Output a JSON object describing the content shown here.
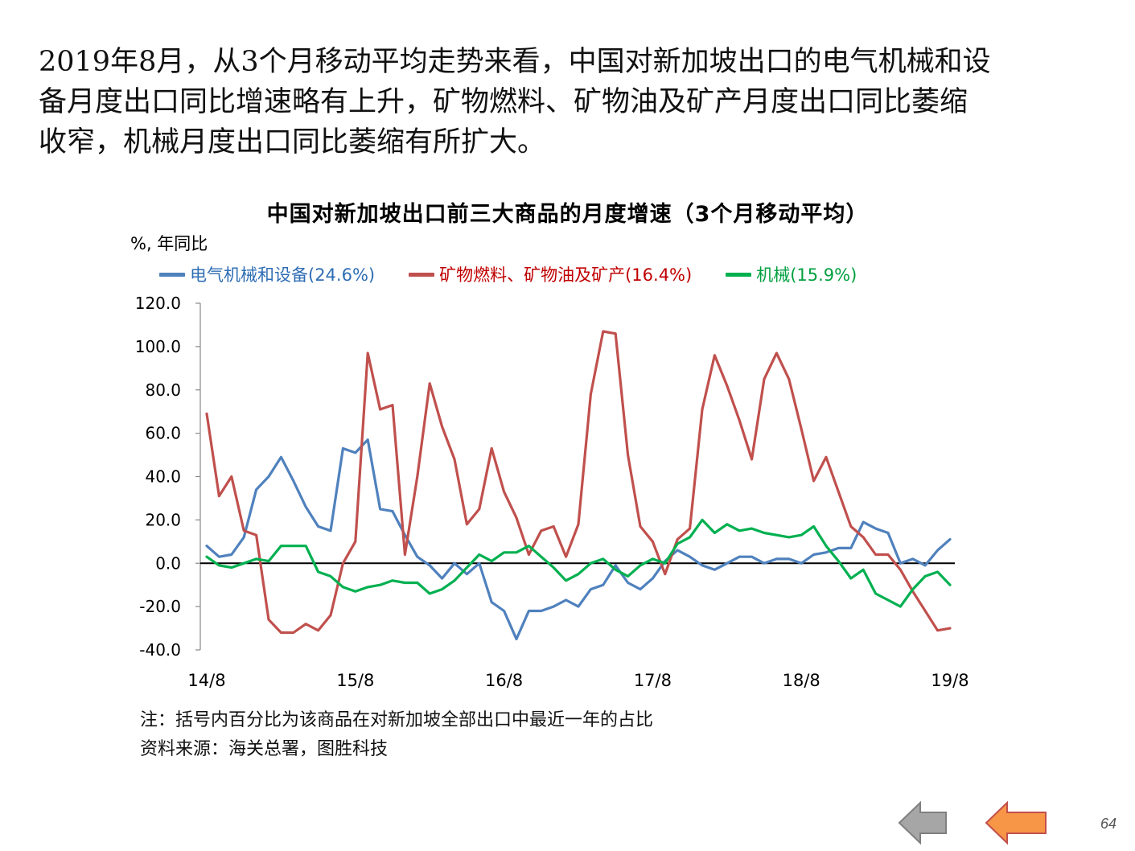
{
  "headline": [
    "2019年8月，从3个月移动平均走势来看，中国对新加坡出口的电气机械和设",
    "备月度出口同比增速略有上升，矿物燃料、矿物油及矿产月度出口同比萎缩",
    "收窄，机械月度出口同比萎缩有所扩大。"
  ],
  "notes": {
    "note": "注：括号内百分比为该商品在对新加坡全部出口中最近一年的占比",
    "source": "资料来源：海关总署，图胜科技"
  },
  "page_number": "64",
  "nav": {
    "back_icon": "left-arrow-gray",
    "forward_icon": "left-arrow-orange"
  },
  "chart_data": {
    "type": "line",
    "title": "中国对新加坡出口前三大商品的月度增速（3个月移动平均）",
    "ylabel": "%, 年同比",
    "ylim": [
      -40,
      120
    ],
    "yticks": [
      "120.0",
      "100.0",
      "80.0",
      "60.0",
      "40.0",
      "20.0",
      "0.0",
      "-20.0",
      "-40.0"
    ],
    "xticks": [
      "14/8",
      "15/8",
      "16/8",
      "17/8",
      "18/8",
      "19/8"
    ],
    "x_start": "14/8",
    "x_end": "19/8",
    "zero_line": true,
    "grid": false,
    "legend_position": "top",
    "series": [
      {
        "name": "电气机械和设备(24.6%)",
        "color": "#4F81BD",
        "values": [
          8,
          3,
          4,
          12,
          34,
          40,
          49,
          38,
          26,
          17,
          15,
          53,
          51,
          57,
          25,
          24,
          13,
          3,
          -1,
          -7,
          0,
          -5,
          0,
          -18,
          -22,
          -35,
          -22,
          -22,
          -20,
          -17,
          -20,
          -12,
          -10,
          -1,
          -9,
          -12,
          -7,
          1,
          6,
          3,
          -1,
          -3,
          0,
          3,
          3,
          0,
          2,
          2,
          0,
          4,
          5,
          7,
          7,
          19,
          16,
          14,
          0,
          2,
          -1,
          6,
          11
        ]
      },
      {
        "name": "矿物燃料、矿物油及矿产(16.4%)",
        "color": "#C0504D",
        "values": [
          69,
          31,
          40,
          15,
          13,
          -26,
          -32,
          -32,
          -28,
          -31,
          -24,
          0,
          10,
          97,
          71,
          73,
          4,
          40,
          83,
          63,
          48,
          18,
          25,
          53,
          33,
          21,
          4,
          15,
          17,
          3,
          18,
          78,
          107,
          106,
          50,
          17,
          10,
          -5,
          11,
          16,
          71,
          96,
          82,
          66,
          48,
          85,
          97,
          85,
          62,
          38,
          49,
          33,
          17,
          12,
          4,
          4,
          -3,
          -13,
          -22,
          -31,
          -30
        ]
      },
      {
        "name": "机械(15.9%)",
        "color": "#00B050",
        "values": [
          3,
          -1,
          -2,
          0,
          2,
          1,
          8,
          8,
          8,
          -4,
          -6,
          -11,
          -13,
          -11,
          -10,
          -8,
          -9,
          -9,
          -14,
          -12,
          -8,
          -2,
          4,
          1,
          5,
          5,
          8,
          3,
          -2,
          -8,
          -5,
          0,
          2,
          -3,
          -6,
          -1,
          2,
          0,
          9,
          12,
          20,
          14,
          18,
          15,
          16,
          14,
          13,
          12,
          13,
          17,
          8,
          1,
          -7,
          -3,
          -14,
          -17,
          -20,
          -12,
          -6,
          -4,
          -10
        ]
      }
    ]
  }
}
